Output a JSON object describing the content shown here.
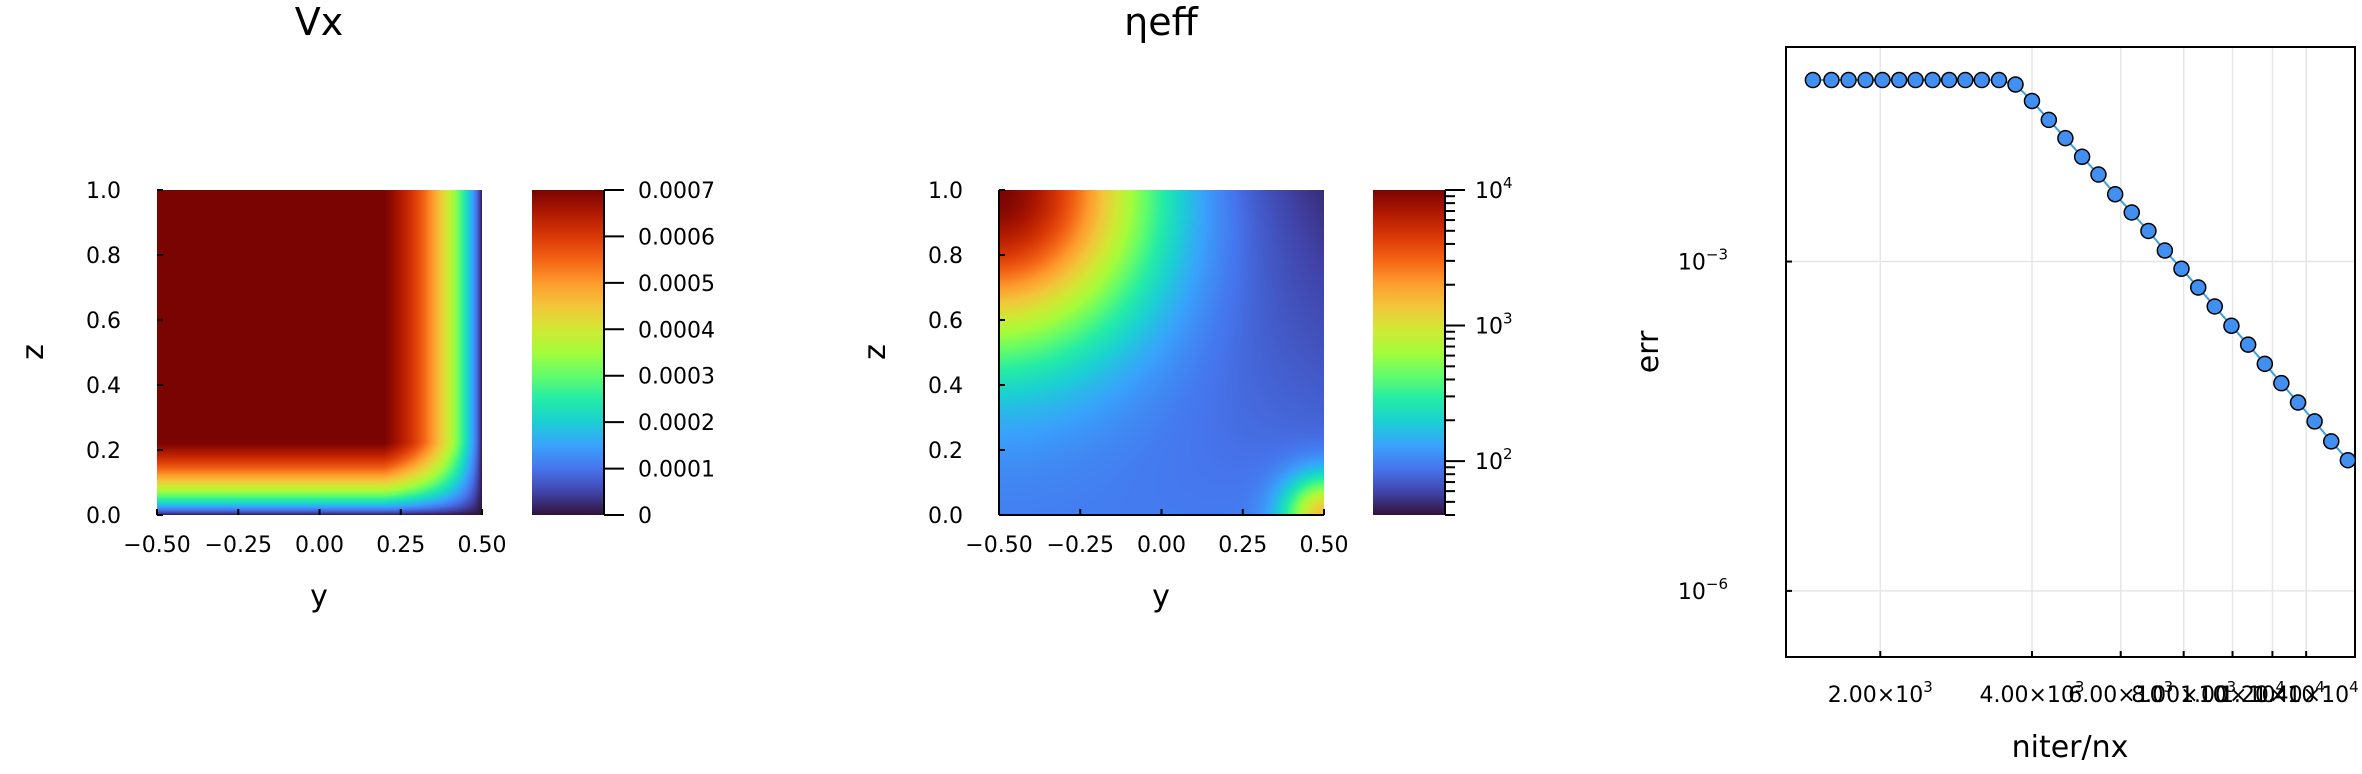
{
  "chart_data": [
    {
      "type": "heatmap",
      "title": "Vx",
      "xlabel": "y",
      "ylabel": "z",
      "xlim": [
        -0.5,
        0.5
      ],
      "ylim": [
        0.0,
        1.0
      ],
      "xticks": [
        -0.5,
        -0.25,
        0.0,
        0.25,
        0.5
      ],
      "xtick_labels": [
        "−0.50",
        "−0.25",
        "0.00",
        "0.25",
        "0.50"
      ],
      "yticks": [
        0.0,
        0.2,
        0.4,
        0.6,
        0.8,
        1.0
      ],
      "ytick_labels": [
        "0.0",
        "0.2",
        "0.4",
        "0.6",
        "0.8",
        "1.0"
      ],
      "colormap": "turbo",
      "colorbar": {
        "scale": "linear",
        "range": [
          0,
          0.0007
        ],
        "ticks": [
          0,
          0.0001,
          0.0002,
          0.0003,
          0.0004,
          0.0005,
          0.0006,
          0.0007
        ],
        "tick_labels": [
          "0",
          "0.0001",
          "0.0002",
          "0.0003",
          "0.0004",
          "0.0005",
          "0.0006",
          "0.0007"
        ]
      },
      "field": "Vx max ~0.0007 near (y=-0.5, z=1); zero at walls y=0.5 and z=0"
    },
    {
      "type": "heatmap",
      "title": "ηeff",
      "xlabel": "y",
      "ylabel": "z",
      "xlim": [
        -0.5,
        0.5
      ],
      "ylim": [
        0.0,
        1.0
      ],
      "xticks": [
        -0.5,
        -0.25,
        0.0,
        0.25,
        0.5
      ],
      "xtick_labels": [
        "−0.50",
        "−0.25",
        "0.00",
        "0.25",
        "0.50"
      ],
      "yticks": [
        0.0,
        0.2,
        0.4,
        0.6,
        0.8,
        1.0
      ],
      "ytick_labels": [
        "0.0",
        "0.2",
        "0.4",
        "0.6",
        "0.8",
        "1.0"
      ],
      "colormap": "turbo",
      "colorbar": {
        "scale": "log10",
        "range": [
          40,
          10000
        ],
        "ticks": [
          100,
          1000,
          10000
        ],
        "tick_labels": [
          {
            "base": "10",
            "exp": "2"
          },
          {
            "base": "10",
            "exp": "3"
          },
          {
            "base": "10",
            "exp": "4"
          }
        ]
      },
      "field": "eta_eff ~1e4 at top-left corner, ~1e3 at bottom-right corner, minimum ~40 along top-right and bottom edges"
    },
    {
      "type": "scatter",
      "connected": true,
      "title": "",
      "xlabel": "niter/nx",
      "ylabel": "err",
      "xscale": "log10",
      "yscale": "log10",
      "xlim": [
        1300,
        17500
      ],
      "ylim": [
        2.5e-07,
        0.09
      ],
      "xticks": [
        2000,
        4000,
        6000,
        8000,
        10000,
        12000,
        14000
      ],
      "xtick_labels": [
        {
          "mant": "2.00×10",
          "exp": "3"
        },
        {
          "mant": "4.00×10",
          "exp": "3"
        },
        {
          "mant": "6.00×10",
          "exp": "3"
        },
        {
          "mant": "8.00×10",
          "exp": "3"
        },
        {
          "mant": "1.00×10",
          "exp": "4"
        },
        {
          "mant": "1.20×10",
          "exp": "4"
        },
        {
          "mant": "1.40×10",
          "exp": "4"
        }
      ],
      "yticks": [
        0.001,
        1e-06
      ],
      "ytick_labels": [
        {
          "base": "10",
          "exp": "−3"
        },
        {
          "base": "10",
          "exp": "−6"
        }
      ],
      "series": [
        {
          "name": "err",
          "color": "#4190f1",
          "line_color": "#3aa1e1",
          "x": [
            1470,
            1600,
            1730,
            1870,
            2020,
            2180,
            2350,
            2540,
            2740,
            2950,
            3180,
            3440,
            3710,
            4000,
            4320,
            4660,
            5030,
            5420,
            5850,
            6310,
            6810,
            7340,
            7920,
            8550,
            9220,
            9950,
            10740,
            11590,
            12500,
            13490,
            14550,
            15700,
            16940
          ],
          "y": [
            0.045,
            0.045,
            0.045,
            0.045,
            0.045,
            0.045,
            0.045,
            0.045,
            0.045,
            0.045,
            0.045,
            0.045,
            0.041,
            0.029,
            0.0195,
            0.0133,
            0.009,
            0.0062,
            0.0041,
            0.0028,
            0.0019,
            0.00126,
            0.00086,
            0.00058,
            0.00039,
            0.00026,
            0.000175,
            0.000117,
            7.8e-05,
            5.2e-05,
            3.5e-05,
            2.3e-05,
            1.55e-05
          ]
        }
      ]
    }
  ]
}
